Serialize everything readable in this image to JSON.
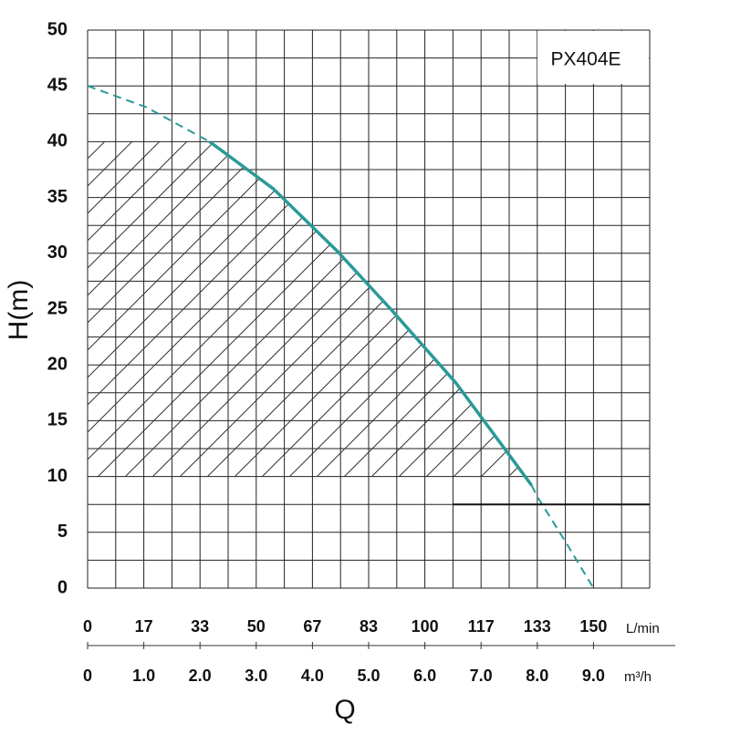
{
  "chart_data": {
    "type": "line",
    "label_box": "PX404E",
    "ylabel": "H(m)",
    "xlabel": "Q",
    "x_unit": "m³/h",
    "x2_unit": "L/min",
    "xlim": [
      0,
      10
    ],
    "ylim": [
      0,
      50
    ],
    "yticks": [
      0,
      5,
      10,
      15,
      20,
      25,
      30,
      35,
      40,
      45,
      50
    ],
    "xticks": [
      0,
      {
        "value": 1,
        "label": "1.0"
      },
      {
        "value": 2,
        "label": "2.0"
      },
      {
        "value": 3,
        "label": "3.0"
      },
      {
        "value": 4,
        "label": "4.0"
      },
      {
        "value": 5,
        "label": "5.0"
      },
      {
        "value": 6,
        "label": "6.0"
      },
      {
        "value": 7,
        "label": "7.0"
      },
      {
        "value": 8,
        "label": "8.0"
      },
      {
        "value": 9,
        "label": "9.0"
      }
    ],
    "x2ticks": [
      0,
      {
        "value": 1,
        "label": "17"
      },
      {
        "value": 2,
        "label": "33"
      },
      {
        "value": 3,
        "label": "50"
      },
      {
        "value": 4,
        "label": "67"
      },
      {
        "value": 5,
        "label": "83"
      },
      {
        "value": 6,
        "label": "100"
      },
      {
        "value": 7,
        "label": "117"
      },
      {
        "value": 8,
        "label": "133"
      },
      {
        "value": 9,
        "label": "150"
      }
    ],
    "xgrid": [
      0,
      0.5,
      1,
      1.5,
      2,
      2.5,
      3,
      3.5,
      4,
      4.5,
      5,
      5.5,
      6,
      6.5,
      7,
      7.5,
      8,
      8.5,
      9,
      9.5,
      10
    ],
    "ygrid": [
      0,
      2.5,
      5,
      7.5,
      10,
      12.5,
      15,
      17.5,
      20,
      22.5,
      25,
      27.5,
      30,
      32.5,
      35,
      37.5,
      40,
      42.5,
      45,
      47.5,
      50
    ],
    "color": "#2a9a98",
    "series": [
      {
        "dashed": true,
        "x": [
          0,
          1.04,
          2.17
        ],
        "values": [
          45,
          43.1,
          40
        ]
      },
      {
        "dashed": false,
        "x": [
          2.17,
          3.3,
          4.44,
          5.41,
          6.55,
          7.52,
          7.9
        ],
        "values": [
          40,
          35.8,
          30.2,
          24.9,
          18.4,
          11.8,
          9.2
        ]
      },
      {
        "dashed": true,
        "x": [
          7.9,
          8.0,
          8.49,
          9
        ],
        "values": [
          9.2,
          8.2,
          4.25,
          0
        ]
      }
    ],
    "hatch_band": [
      10,
      40
    ],
    "reference_line": {
      "y": 7.5,
      "x": [
        6.5,
        10
      ]
    }
  }
}
